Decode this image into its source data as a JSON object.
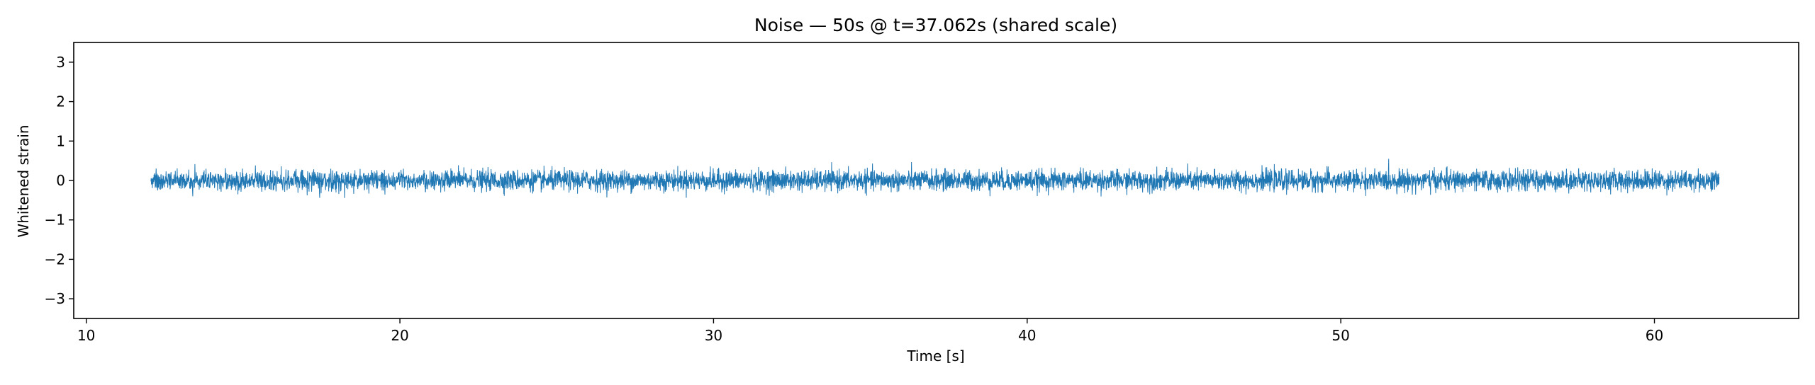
{
  "chart_data": {
    "type": "line",
    "title": "Noise — 50s @ t=37.062s (shared scale)",
    "xlabel": "Time [s]",
    "ylabel": "Whitened strain",
    "xlim": [
      9.6,
      64.6
    ],
    "ylim": [
      -3.5,
      3.5
    ],
    "xticks": [
      10,
      20,
      30,
      40,
      50,
      60
    ],
    "xtick_labels": [
      "10",
      "20",
      "30",
      "40",
      "50",
      "60"
    ],
    "yticks": [
      -3,
      -2,
      -1,
      0,
      1,
      2,
      3
    ],
    "ytick_labels": [
      "−3",
      "−2",
      "−1",
      "0",
      "1",
      "2",
      "3"
    ],
    "grid": false,
    "series": [
      {
        "color": "#1f77b4",
        "t_start": 12.062,
        "t_end": 62.062,
        "mean": 0.0,
        "envelope": [
          -0.55,
          0.55
        ],
        "description": "whitened noise fluctuating around 0 with amplitude ~0.3, peaks near ±0.55"
      }
    ]
  }
}
